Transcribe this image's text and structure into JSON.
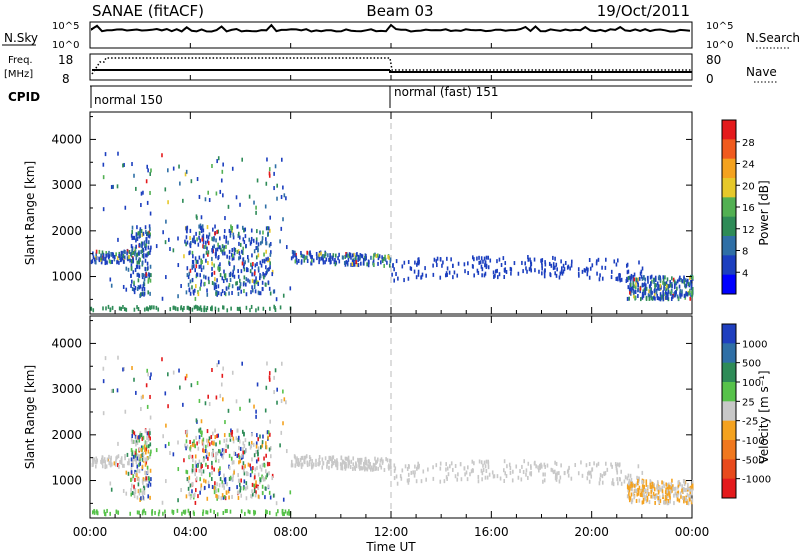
{
  "header": {
    "title_left": "SANAE (fitACF)",
    "title_center": "Beam 03",
    "title_right": "19/Oct/2011"
  },
  "status_panels": {
    "nsky_label": "N.Sky",
    "nsky_ticks": [
      "10^5",
      "10^0"
    ],
    "nsearch_label": "N.Search",
    "nsearch_ticks": [
      "10^5",
      "10^0"
    ],
    "freq_label": "Freq.",
    "freq_unit": "[MHz]",
    "freq_ticks": [
      18,
      8
    ],
    "nave_label": "Nave",
    "nave_ticks": [
      80,
      0
    ],
    "cpid_label": "CPID",
    "cpid_segments": [
      "normal 150",
      "normal (fast) 151"
    ],
    "cpid_switch_hour": 12
  },
  "chart_data": [
    {
      "type": "heatmap",
      "name": "power-panel",
      "ylabel": "Slant Range [km]",
      "xlabel": "",
      "y_ticks": [
        1000,
        2000,
        3000,
        4000
      ],
      "ylim": [
        180,
        4600
      ],
      "xlim": [
        0,
        24
      ],
      "colorbar_label": "Power [dB]",
      "colorbar_ticks": [
        "28",
        "24",
        "20",
        "16",
        "12",
        "8",
        "4"
      ],
      "colorbar_colors": [
        "#e41a1c",
        "#f05a1e",
        "#f4a21f",
        "#e6c82a",
        "#52b052",
        "#2e8b57",
        "#2f6fa6",
        "#1c3fbf",
        "#0000ff"
      ],
      "dashed_line_hour": 12
    },
    {
      "type": "heatmap",
      "name": "velocity-panel",
      "ylabel": "Slant Range [km]",
      "xlabel": "Time UT",
      "x_ticks": [
        "00:00",
        "04:00",
        "08:00",
        "12:00",
        "16:00",
        "20:00",
        "00:00"
      ],
      "y_ticks": [
        1000,
        2000,
        3000,
        4000
      ],
      "ylim": [
        180,
        4600
      ],
      "xlim": [
        0,
        24
      ],
      "colorbar_label": "Velocity [m s⁻¹]",
      "colorbar_ticks": [
        "1000",
        "500",
        "100",
        "25",
        "-25",
        "-100",
        "-500",
        "-1000"
      ],
      "colorbar_colors": [
        "#1f3fbf",
        "#2f6fa6",
        "#2e8b57",
        "#57c24a",
        "#c8c8c8",
        "#f4a21f",
        "#f0781e",
        "#e84a1c",
        "#e41a1c"
      ],
      "dashed_line_hour": 12
    }
  ]
}
